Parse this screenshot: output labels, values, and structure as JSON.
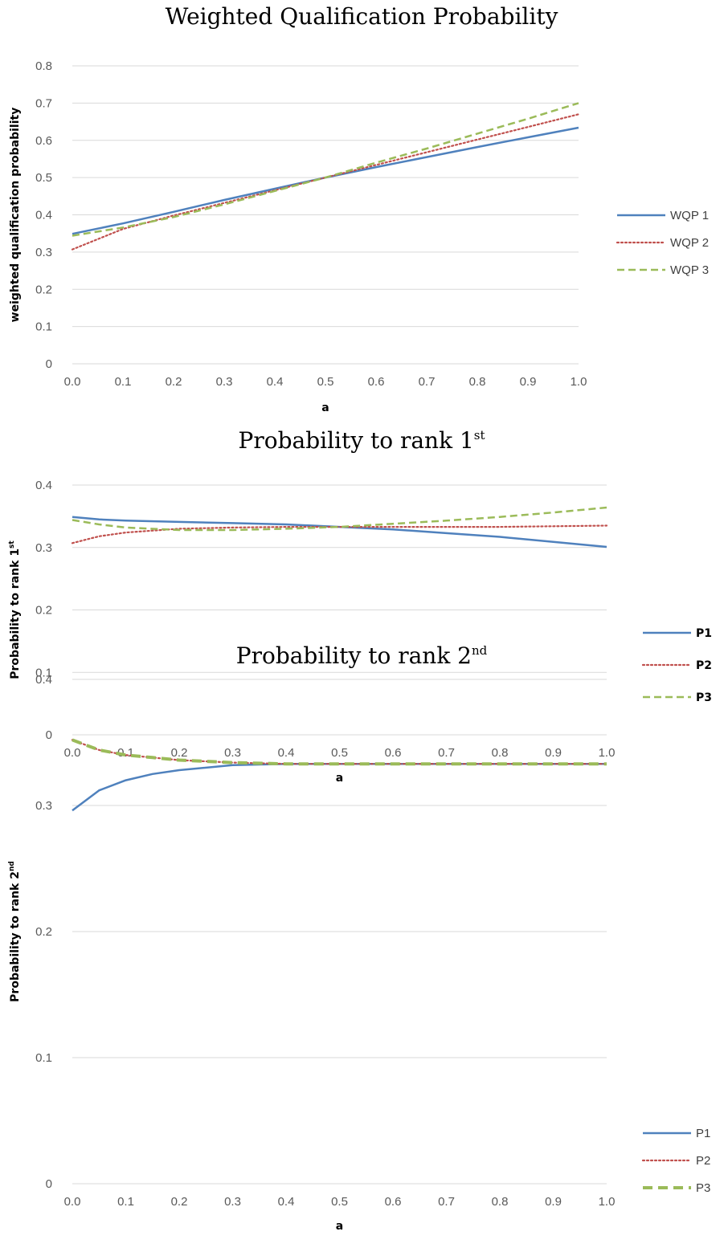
{
  "chart_data": [
    {
      "type": "line",
      "title": "Weighted Qualification Probability",
      "title_sup": "",
      "xlabel": "a",
      "ylabel": "weighted qualification probability",
      "ylabel_sup": "",
      "xlim": [
        0,
        1
      ],
      "ylim": [
        0,
        0.8
      ],
      "x_ticks": [
        "0.0",
        "0.1",
        "0.2",
        "0.3",
        "0.4",
        "0.5",
        "0.6",
        "0.7",
        "0.8",
        "0.9",
        "1.0"
      ],
      "y_ticks": [
        "0",
        "0.1",
        "0.2",
        "0.3",
        "0.4",
        "0.5",
        "0.6",
        "0.7",
        "0.8"
      ],
      "legend_position": "right",
      "x": [
        0,
        0.1,
        0.2,
        0.3,
        0.4,
        0.5,
        0.6,
        0.7,
        0.8,
        0.9,
        1.0
      ],
      "series": [
        {
          "name": "WQP 1",
          "color": "#4f81bd",
          "dash": "solid",
          "values": [
            0.349,
            0.377,
            0.408,
            0.44,
            0.47,
            0.5,
            0.528,
            0.555,
            0.582,
            0.608,
            0.634
          ]
        },
        {
          "name": "WQP 2",
          "color": "#c0504d",
          "dash": "dotted",
          "values": [
            0.307,
            0.362,
            0.398,
            0.432,
            0.466,
            0.5,
            0.534,
            0.568,
            0.602,
            0.636,
            0.67
          ]
        },
        {
          "name": "WQP 3",
          "color": "#9bbb59",
          "dash": "dashed",
          "values": [
            0.344,
            0.366,
            0.394,
            0.428,
            0.464,
            0.5,
            0.54,
            0.578,
            0.618,
            0.658,
            0.7
          ]
        }
      ]
    },
    {
      "type": "line",
      "title": "Probability to rank 1",
      "title_sup": "st",
      "xlabel": "a",
      "ylabel": "Probability to rank 1",
      "ylabel_sup": "st",
      "xlim": [
        0,
        1
      ],
      "ylim": [
        0,
        0.4
      ],
      "x_ticks": [
        "0.0",
        "0.1",
        "0.2",
        "0.3",
        "0.4",
        "0.5",
        "0.6",
        "0.7",
        "0.8",
        "0.9",
        "1.0"
      ],
      "y_ticks": [
        "0",
        "0.1",
        "0.2",
        "0.3",
        "0.4"
      ],
      "legend_position": "right",
      "x": [
        0,
        0.05,
        0.1,
        0.2,
        0.3,
        0.4,
        0.5,
        0.6,
        0.7,
        0.8,
        0.9,
        1.0
      ],
      "series": [
        {
          "name": "P1",
          "color": "#4f81bd",
          "dash": "solid",
          "values": [
            0.349,
            0.345,
            0.343,
            0.341,
            0.339,
            0.337,
            0.333,
            0.329,
            0.323,
            0.317,
            0.309,
            0.301
          ]
        },
        {
          "name": "P2",
          "color": "#c0504d",
          "dash": "dotted",
          "values": [
            0.307,
            0.318,
            0.324,
            0.33,
            0.332,
            0.333,
            0.333,
            0.333,
            0.333,
            0.333,
            0.334,
            0.335
          ]
        },
        {
          "name": "P3",
          "color": "#9bbb59",
          "dash": "dashed",
          "values": [
            0.344,
            0.337,
            0.332,
            0.328,
            0.328,
            0.33,
            0.333,
            0.338,
            0.343,
            0.349,
            0.356,
            0.364
          ]
        }
      ]
    },
    {
      "type": "line",
      "title": "Probability to rank 2",
      "title_sup": "nd",
      "xlabel": "a",
      "ylabel": "Probability to rank 2",
      "ylabel_sup": "nd",
      "xlim": [
        0,
        1
      ],
      "ylim": [
        0,
        0.4
      ],
      "x_ticks": [
        "0.0",
        "0.1",
        "0.2",
        "0.3",
        "0.4",
        "0.5",
        "0.6",
        "0.7",
        "0.8",
        "0.9",
        "1.0"
      ],
      "y_ticks": [
        "0",
        "0.1",
        "0.2",
        "0.3",
        "0.4"
      ],
      "legend_position": "right",
      "x": [
        0,
        0.05,
        0.1,
        0.15,
        0.2,
        0.3,
        0.4,
        0.5,
        0.6,
        0.7,
        0.8,
        0.9,
        1.0
      ],
      "series": [
        {
          "name": "P1",
          "color": "#4f81bd",
          "dash": "solid",
          "values": [
            0.296,
            0.312,
            0.32,
            0.325,
            0.328,
            0.332,
            0.333,
            0.333,
            0.333,
            0.333,
            0.333,
            0.333,
            0.333
          ]
        },
        {
          "name": "P2",
          "color": "#c0504d",
          "dash": "dotted",
          "values": [
            0.352,
            0.344,
            0.34,
            0.338,
            0.336,
            0.334,
            0.333,
            0.333,
            0.333,
            0.333,
            0.333,
            0.333,
            0.333
          ]
        },
        {
          "name": "P3",
          "color": "#9bbb59",
          "dash": "dashed-bold",
          "values": [
            0.352,
            0.344,
            0.34,
            0.338,
            0.336,
            0.334,
            0.333,
            0.333,
            0.333,
            0.333,
            0.333,
            0.333,
            0.333
          ]
        }
      ]
    }
  ]
}
